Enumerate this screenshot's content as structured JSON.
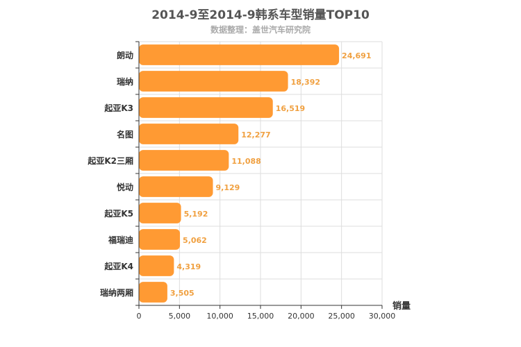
{
  "chart_data": {
    "type": "bar",
    "orientation": "horizontal",
    "title": "2014-9至2014-9韩系车型销量TOP10",
    "subtitle": "数据整理：盖世汽车研究院",
    "categories": [
      "朗动",
      "瑞纳",
      "起亚K3",
      "名图",
      "起亚K2三厢",
      "悦动",
      "起亚K5",
      "福瑞迪",
      "起亚K4",
      "瑞纳两厢"
    ],
    "values": [
      24691,
      18392,
      16519,
      12277,
      11088,
      9129,
      5192,
      5062,
      4319,
      3505
    ],
    "value_labels": [
      "24,691",
      "18,392",
      "16,519",
      "12,277",
      "11,088",
      "9,129",
      "5,192",
      "5,062",
      "4,319",
      "3,505"
    ],
    "xlabel": "销量",
    "ylabel": "",
    "xlim": [
      0,
      30000
    ],
    "x_ticks": [
      0,
      5000,
      10000,
      15000,
      20000,
      25000,
      30000
    ],
    "x_tick_labels": [
      "0",
      "5,000",
      "10,000",
      "15,000",
      "20,000",
      "25,000",
      "30,000"
    ],
    "grid": true,
    "bar_color": "#ff9a33",
    "label_color": "#f0a040"
  }
}
